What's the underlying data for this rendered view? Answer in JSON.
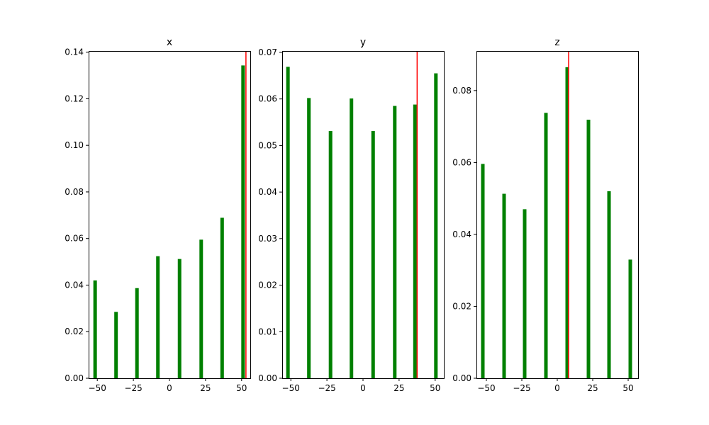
{
  "colors": {
    "bar": "#008000",
    "marker": "#ff0000",
    "axis": "#000000"
  },
  "chart_data": [
    {
      "type": "bar",
      "title": "x",
      "xlabel": "",
      "ylabel": "",
      "x": [
        -51.5,
        -37,
        -22.5,
        -8,
        7,
        22,
        36.5,
        51
      ],
      "values": [
        0.042,
        0.0285,
        0.0387,
        0.0524,
        0.0512,
        0.0595,
        0.0689,
        0.1343
      ],
      "xlim": [
        -56,
        56
      ],
      "ylim": [
        0,
        0.1405
      ],
      "xticks": [
        -50,
        -25,
        0,
        25,
        50
      ],
      "xtick_labels": [
        "−50",
        "−25",
        "0",
        "25",
        "50"
      ],
      "yticks": [
        0,
        0.02,
        0.04,
        0.06,
        0.08,
        0.1,
        0.12,
        0.14
      ],
      "ytick_labels": [
        "0.00",
        "0.02",
        "0.04",
        "0.06",
        "0.08",
        "0.10",
        "0.12",
        "0.14"
      ],
      "vline": 53,
      "grid": false
    },
    {
      "type": "bar",
      "title": "y",
      "xlabel": "",
      "ylabel": "",
      "x": [
        -52,
        -37.5,
        -22.5,
        -8,
        7,
        22,
        36,
        50.5
      ],
      "values": [
        0.0669,
        0.0602,
        0.0531,
        0.0601,
        0.0531,
        0.0585,
        0.0588,
        0.0655
      ],
      "xlim": [
        -56,
        56
      ],
      "ylim": [
        0,
        0.0703
      ],
      "xticks": [
        -50,
        -25,
        0,
        25,
        50
      ],
      "xtick_labels": [
        "−50",
        "−25",
        "0",
        "25",
        "50"
      ],
      "yticks": [
        0,
        0.01,
        0.02,
        0.03,
        0.04,
        0.05,
        0.06,
        0.07
      ],
      "ytick_labels": [
        "0.00",
        "0.01",
        "0.02",
        "0.03",
        "0.04",
        "0.05",
        "0.06",
        "0.07"
      ],
      "vline": 37.5,
      "grid": false
    },
    {
      "type": "bar",
      "title": "z",
      "xlabel": "",
      "ylabel": "",
      "x": [
        -52.5,
        -37.5,
        -23,
        -8,
        7,
        22,
        36.5,
        51.5
      ],
      "values": [
        0.0596,
        0.0513,
        0.047,
        0.0738,
        0.0865,
        0.0719,
        0.052,
        0.033
      ],
      "xlim": [
        -57,
        57
      ],
      "ylim": [
        0,
        0.091
      ],
      "xticks": [
        -50,
        -25,
        0,
        25,
        50
      ],
      "xtick_labels": [
        "−50",
        "−25",
        "0",
        "25",
        "50"
      ],
      "yticks": [
        0,
        0.02,
        0.04,
        0.06,
        0.08
      ],
      "ytick_labels": [
        "0.00",
        "0.02",
        "0.04",
        "0.06",
        "0.08"
      ],
      "vline": 8,
      "grid": false
    }
  ]
}
